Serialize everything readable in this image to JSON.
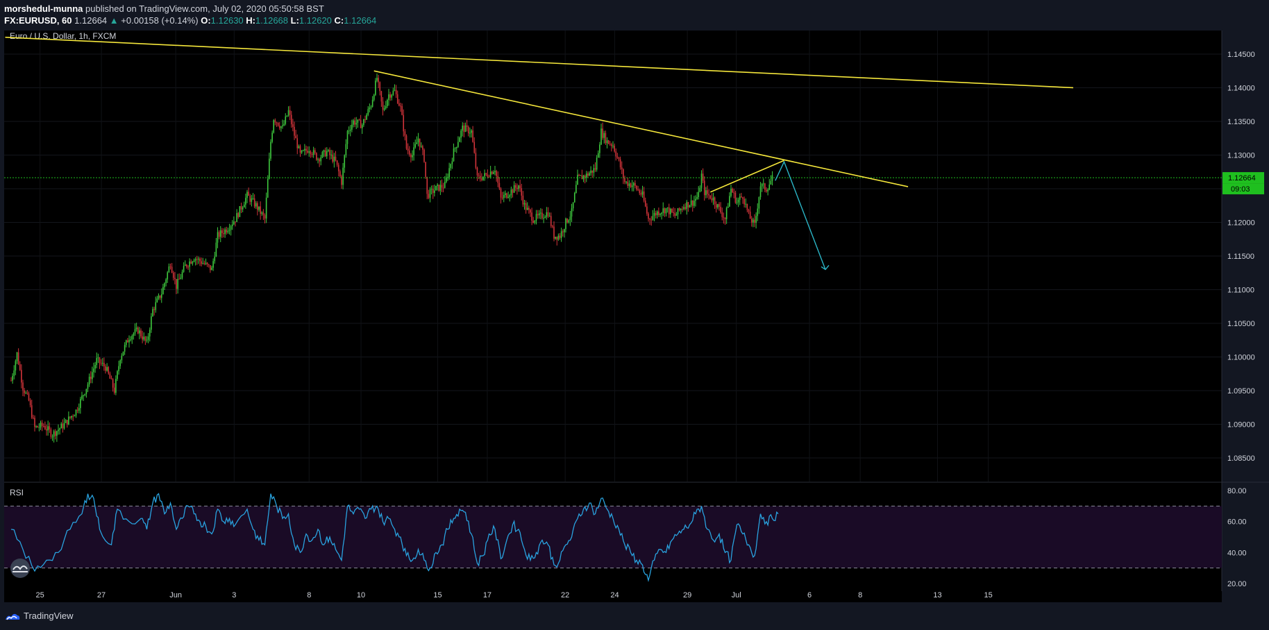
{
  "header": {
    "publisher": "morshedul-munna",
    "published_text": " published on TradingView.com, July 02, 2020 05:50:58 BST",
    "symbol": "FX:EURUSD, 60",
    "last": "1.12664",
    "change": "+0.00158 (+0.14%)",
    "o_label": "O:",
    "o": "1.12630",
    "h_label": "H:",
    "h": "1.12668",
    "l_label": "L:",
    "l": "1.12620",
    "c_label": "C:",
    "c": "1.12664"
  },
  "footer": {
    "brand": "TradingView"
  },
  "colors": {
    "background": "#000000",
    "up": "#26a69a",
    "candle_up": "#3ec93e",
    "candle_down": "#d2343a",
    "trendline": "#f5e73b",
    "projection": "#2bb5c6",
    "rsi_line": "#29a3e0",
    "rsi_band": "#1a0b26",
    "price_label_bg": "#1fbf1f"
  },
  "chart_data": [
    {
      "type": "candlestick",
      "title": "Euro / U.S. Dollar, 1h, FXCM",
      "timeframe": "1h",
      "x_ticks": [
        "25",
        "27",
        "Jun",
        "3",
        "8",
        "10",
        "15",
        "17",
        "22",
        "24",
        "29",
        "Jul",
        "6",
        "8",
        "13",
        "15"
      ],
      "y_ticks": [
        "1.14500",
        "1.14000",
        "1.13500",
        "1.13000",
        "1.12500",
        "1.12000",
        "1.11500",
        "1.11000",
        "1.10500",
        "1.10000",
        "1.09500",
        "1.09000",
        "1.08500"
      ],
      "ylim": [
        1.0815,
        1.1485
      ],
      "current_price": "1.12664",
      "countdown": "09:03",
      "close_path": [
        {
          "t": 0.0,
          "v": 1.0965
        },
        {
          "t": 1.0,
          "v": 1.1005
        },
        {
          "t": 2.0,
          "v": 1.0955
        },
        {
          "t": 3.0,
          "v": 1.0935
        },
        {
          "t": 4.0,
          "v": 1.0895
        },
        {
          "t": 5.5,
          "v": 1.0898
        },
        {
          "t": 7.0,
          "v": 1.0885
        },
        {
          "t": 9.0,
          "v": 1.09
        },
        {
          "t": 11.0,
          "v": 1.092
        },
        {
          "t": 13.0,
          "v": 1.096
        },
        {
          "t": 14.5,
          "v": 1.0995
        },
        {
          "t": 16.0,
          "v": 1.0985
        },
        {
          "t": 17.5,
          "v": 1.095
        },
        {
          "t": 18.5,
          "v": 1.1
        },
        {
          "t": 20.0,
          "v": 1.103
        },
        {
          "t": 21.5,
          "v": 1.104
        },
        {
          "t": 23.0,
          "v": 1.102
        },
        {
          "t": 24.0,
          "v": 1.107
        },
        {
          "t": 25.5,
          "v": 1.1095
        },
        {
          "t": 27.0,
          "v": 1.114
        },
        {
          "t": 28.0,
          "v": 1.1105
        },
        {
          "t": 29.5,
          "v": 1.1135
        },
        {
          "t": 31.0,
          "v": 1.1148
        },
        {
          "t": 32.5,
          "v": 1.114
        },
        {
          "t": 34.0,
          "v": 1.113
        },
        {
          "t": 35.0,
          "v": 1.118
        },
        {
          "t": 36.5,
          "v": 1.119
        },
        {
          "t": 38.0,
          "v": 1.1205
        },
        {
          "t": 40.0,
          "v": 1.124
        },
        {
          "t": 41.5,
          "v": 1.1225
        },
        {
          "t": 43.0,
          "v": 1.1205
        },
        {
          "t": 44.0,
          "v": 1.132
        },
        {
          "t": 44.5,
          "v": 1.1355
        },
        {
          "t": 46.0,
          "v": 1.134
        },
        {
          "t": 47.0,
          "v": 1.1365
        },
        {
          "t": 48.0,
          "v": 1.133
        },
        {
          "t": 49.0,
          "v": 1.13
        },
        {
          "t": 50.5,
          "v": 1.131
        },
        {
          "t": 52.0,
          "v": 1.1295
        },
        {
          "t": 53.5,
          "v": 1.1305
        },
        {
          "t": 55.0,
          "v": 1.129
        },
        {
          "t": 56.0,
          "v": 1.126
        },
        {
          "t": 57.0,
          "v": 1.1335
        },
        {
          "t": 58.0,
          "v": 1.135
        },
        {
          "t": 59.5,
          "v": 1.1345
        },
        {
          "t": 61.0,
          "v": 1.1375
        },
        {
          "t": 62.0,
          "v": 1.1415
        },
        {
          "t": 63.0,
          "v": 1.1365
        },
        {
          "t": 64.0,
          "v": 1.139
        },
        {
          "t": 65.0,
          "v": 1.1395
        },
        {
          "t": 66.0,
          "v": 1.137
        },
        {
          "t": 67.0,
          "v": 1.131
        },
        {
          "t": 68.0,
          "v": 1.13
        },
        {
          "t": 69.0,
          "v": 1.1325
        },
        {
          "t": 70.0,
          "v": 1.1295
        },
        {
          "t": 70.5,
          "v": 1.124
        },
        {
          "t": 72.0,
          "v": 1.125
        },
        {
          "t": 73.5,
          "v": 1.1255
        },
        {
          "t": 75.0,
          "v": 1.1305
        },
        {
          "t": 76.5,
          "v": 1.134
        },
        {
          "t": 78.0,
          "v": 1.1335
        },
        {
          "t": 79.0,
          "v": 1.1265
        },
        {
          "t": 80.5,
          "v": 1.127
        },
        {
          "t": 82.0,
          "v": 1.128
        },
        {
          "t": 83.0,
          "v": 1.1235
        },
        {
          "t": 84.5,
          "v": 1.1245
        },
        {
          "t": 86.0,
          "v": 1.1255
        },
        {
          "t": 87.0,
          "v": 1.1225
        },
        {
          "t": 88.5,
          "v": 1.1205
        },
        {
          "t": 90.0,
          "v": 1.121
        },
        {
          "t": 91.0,
          "v": 1.1215
        },
        {
          "t": 92.0,
          "v": 1.118
        },
        {
          "t": 93.0,
          "v": 1.118
        },
        {
          "t": 94.0,
          "v": 1.12
        },
        {
          "t": 95.0,
          "v": 1.1215
        },
        {
          "t": 96.0,
          "v": 1.1265
        },
        {
          "t": 97.5,
          "v": 1.127
        },
        {
          "t": 99.0,
          "v": 1.128
        },
        {
          "t": 100.0,
          "v": 1.1335
        },
        {
          "t": 101.0,
          "v": 1.132
        },
        {
          "t": 102.0,
          "v": 1.1315
        },
        {
          "t": 103.0,
          "v": 1.129
        },
        {
          "t": 104.0,
          "v": 1.126
        },
        {
          "t": 105.5,
          "v": 1.1255
        },
        {
          "t": 107.0,
          "v": 1.124
        },
        {
          "t": 108.0,
          "v": 1.1205
        },
        {
          "t": 109.5,
          "v": 1.1215
        },
        {
          "t": 111.0,
          "v": 1.122
        },
        {
          "t": 112.5,
          "v": 1.121
        },
        {
          "t": 114.0,
          "v": 1.1225
        },
        {
          "t": 115.5,
          "v": 1.123
        },
        {
          "t": 116.5,
          "v": 1.124
        },
        {
          "t": 117.0,
          "v": 1.127
        },
        {
          "t": 117.5,
          "v": 1.1245
        },
        {
          "t": 119.0,
          "v": 1.1235
        },
        {
          "t": 120.0,
          "v": 1.122
        },
        {
          "t": 121.0,
          "v": 1.1205
        },
        {
          "t": 122.0,
          "v": 1.125
        },
        {
          "t": 123.0,
          "v": 1.123
        },
        {
          "t": 124.0,
          "v": 1.124
        },
        {
          "t": 125.0,
          "v": 1.121
        },
        {
          "t": 126.0,
          "v": 1.1195
        },
        {
          "t": 127.0,
          "v": 1.1255
        },
        {
          "t": 128.0,
          "v": 1.125
        },
        {
          "t": 129.0,
          "v": 1.1265
        }
      ],
      "trendlines": [
        {
          "x1": -1,
          "y1": 1.1475,
          "x2": 180,
          "y2": 1.14
        },
        {
          "x1": 61.5,
          "y1": 1.1425,
          "x2": 152,
          "y2": 1.1253
        },
        {
          "x1": 118.5,
          "y1": 1.1245,
          "x2": 131,
          "y2": 1.1292
        }
      ],
      "projection": [
        {
          "x": 129.5,
          "y": 1.1262
        },
        {
          "x": 131,
          "y": 1.129
        },
        {
          "x": 138,
          "y": 1.113
        }
      ]
    },
    {
      "type": "line",
      "title": "RSI",
      "y_ticks": [
        "80.00",
        "60.00",
        "40.00",
        "20.00"
      ],
      "ylim": [
        15,
        85
      ],
      "bands": [
        70,
        30
      ],
      "values_path": [
        {
          "t": 0,
          "v": 55
        },
        {
          "t": 2,
          "v": 42
        },
        {
          "t": 4,
          "v": 28
        },
        {
          "t": 6,
          "v": 35
        },
        {
          "t": 8,
          "v": 40
        },
        {
          "t": 10,
          "v": 55
        },
        {
          "t": 12,
          "v": 65
        },
        {
          "t": 13,
          "v": 78
        },
        {
          "t": 14,
          "v": 75
        },
        {
          "t": 15,
          "v": 55
        },
        {
          "t": 17,
          "v": 45
        },
        {
          "t": 18,
          "v": 68
        },
        {
          "t": 20,
          "v": 60
        },
        {
          "t": 22,
          "v": 62
        },
        {
          "t": 23,
          "v": 55
        },
        {
          "t": 24,
          "v": 72
        },
        {
          "t": 25,
          "v": 78
        },
        {
          "t": 26,
          "v": 65
        },
        {
          "t": 27,
          "v": 72
        },
        {
          "t": 28,
          "v": 55
        },
        {
          "t": 29,
          "v": 62
        },
        {
          "t": 30,
          "v": 70
        },
        {
          "t": 31,
          "v": 65
        },
        {
          "t": 32,
          "v": 60
        },
        {
          "t": 33,
          "v": 57
        },
        {
          "t": 34,
          "v": 52
        },
        {
          "t": 35,
          "v": 68
        },
        {
          "t": 36,
          "v": 60
        },
        {
          "t": 37,
          "v": 62
        },
        {
          "t": 38,
          "v": 58
        },
        {
          "t": 40,
          "v": 68
        },
        {
          "t": 41,
          "v": 55
        },
        {
          "t": 42,
          "v": 48
        },
        {
          "t": 43,
          "v": 45
        },
        {
          "t": 44,
          "v": 78
        },
        {
          "t": 45,
          "v": 70
        },
        {
          "t": 46,
          "v": 62
        },
        {
          "t": 47,
          "v": 65
        },
        {
          "t": 48,
          "v": 45
        },
        {
          "t": 49,
          "v": 40
        },
        {
          "t": 50,
          "v": 52
        },
        {
          "t": 51,
          "v": 48
        },
        {
          "t": 52,
          "v": 55
        },
        {
          "t": 53,
          "v": 45
        },
        {
          "t": 54,
          "v": 50
        },
        {
          "t": 55,
          "v": 42
        },
        {
          "t": 56,
          "v": 35
        },
        {
          "t": 57,
          "v": 70
        },
        {
          "t": 58,
          "v": 65
        },
        {
          "t": 59,
          "v": 68
        },
        {
          "t": 60,
          "v": 62
        },
        {
          "t": 61,
          "v": 68
        },
        {
          "t": 62,
          "v": 70
        },
        {
          "t": 63,
          "v": 60
        },
        {
          "t": 64,
          "v": 62
        },
        {
          "t": 65,
          "v": 55
        },
        {
          "t": 66,
          "v": 50
        },
        {
          "t": 67,
          "v": 38
        },
        {
          "t": 68,
          "v": 35
        },
        {
          "t": 69,
          "v": 42
        },
        {
          "t": 70,
          "v": 35
        },
        {
          "t": 71,
          "v": 30
        },
        {
          "t": 72,
          "v": 40
        },
        {
          "t": 73,
          "v": 45
        },
        {
          "t": 74,
          "v": 55
        },
        {
          "t": 75,
          "v": 62
        },
        {
          "t": 76,
          "v": 68
        },
        {
          "t": 77,
          "v": 66
        },
        {
          "t": 78,
          "v": 52
        },
        {
          "t": 79,
          "v": 33
        },
        {
          "t": 80,
          "v": 38
        },
        {
          "t": 81,
          "v": 52
        },
        {
          "t": 82,
          "v": 55
        },
        {
          "t": 83,
          "v": 36
        },
        {
          "t": 84,
          "v": 48
        },
        {
          "t": 85,
          "v": 58
        },
        {
          "t": 86,
          "v": 55
        },
        {
          "t": 87,
          "v": 42
        },
        {
          "t": 88,
          "v": 35
        },
        {
          "t": 89,
          "v": 40
        },
        {
          "t": 90,
          "v": 48
        },
        {
          "t": 91,
          "v": 45
        },
        {
          "t": 92,
          "v": 32
        },
        {
          "t": 93,
          "v": 35
        },
        {
          "t": 94,
          "v": 45
        },
        {
          "t": 95,
          "v": 50
        },
        {
          "t": 96,
          "v": 62
        },
        {
          "t": 97,
          "v": 68
        },
        {
          "t": 98,
          "v": 72
        },
        {
          "t": 99,
          "v": 65
        },
        {
          "t": 100,
          "v": 75
        },
        {
          "t": 101,
          "v": 68
        },
        {
          "t": 102,
          "v": 62
        },
        {
          "t": 103,
          "v": 55
        },
        {
          "t": 104,
          "v": 45
        },
        {
          "t": 105,
          "v": 40
        },
        {
          "t": 106,
          "v": 35
        },
        {
          "t": 107,
          "v": 32
        },
        {
          "t": 108,
          "v": 22
        },
        {
          "t": 109,
          "v": 35
        },
        {
          "t": 110,
          "v": 42
        },
        {
          "t": 111,
          "v": 40
        },
        {
          "t": 112,
          "v": 48
        },
        {
          "t": 113,
          "v": 52
        },
        {
          "t": 114,
          "v": 55
        },
        {
          "t": 115,
          "v": 58
        },
        {
          "t": 116,
          "v": 65
        },
        {
          "t": 117,
          "v": 70
        },
        {
          "t": 118,
          "v": 55
        },
        {
          "t": 119,
          "v": 48
        },
        {
          "t": 120,
          "v": 52
        },
        {
          "t": 121,
          "v": 40
        },
        {
          "t": 122,
          "v": 35
        },
        {
          "t": 123,
          "v": 58
        },
        {
          "t": 124,
          "v": 52
        },
        {
          "t": 125,
          "v": 45
        },
        {
          "t": 126,
          "v": 38
        },
        {
          "t": 127,
          "v": 65
        },
        {
          "t": 128,
          "v": 60
        },
        {
          "t": 129,
          "v": 62
        },
        {
          "t": 130,
          "v": 65
        }
      ]
    }
  ]
}
